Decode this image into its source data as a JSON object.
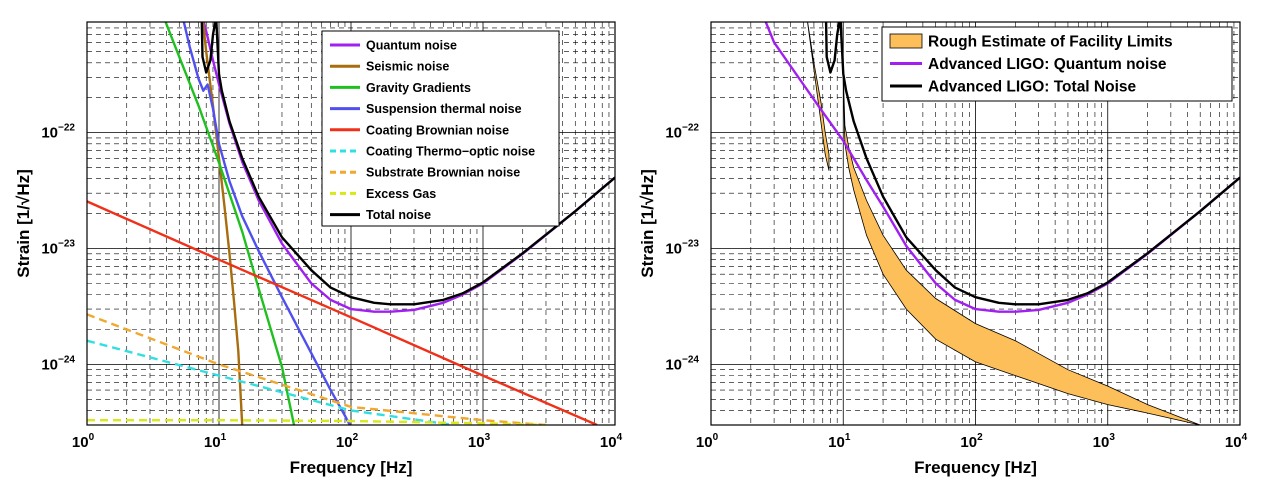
{
  "chart_data": [
    {
      "type": "line",
      "xscale": "log",
      "yscale": "log",
      "xlim": [
        1,
        10000
      ],
      "ylim": [
        3e-25,
        9e-22
      ],
      "xlabel": "Frequency [Hz]",
      "ylabel": "Strain [1/√Hz]",
      "grid": true,
      "legend_position": "top-right",
      "x_ticks": [
        {
          "value": 1,
          "base": "10",
          "exp": "0"
        },
        {
          "value": 10,
          "base": "10",
          "exp": "1"
        },
        {
          "value": 100,
          "base": "10",
          "exp": "2"
        },
        {
          "value": 1000,
          "base": "10",
          "exp": "3"
        },
        {
          "value": 10000,
          "base": "10",
          "exp": "4"
        }
      ],
      "y_ticks": [
        {
          "value": 1e-24,
          "base": "10",
          "exp": "−24"
        },
        {
          "value": 1e-23,
          "base": "10",
          "exp": "−23"
        },
        {
          "value": 1e-22,
          "base": "10",
          "exp": "−22"
        }
      ],
      "series": [
        {
          "name": "Quantum noise",
          "color": "#a020f0",
          "dash": "solid",
          "x": [
            7,
            8,
            9,
            10,
            12,
            15,
            20,
            30,
            50,
            70,
            100,
            150,
            200,
            300,
            500,
            700,
            1000,
            2000,
            5000,
            10000
          ],
          "y": [
            1.3e-21,
            7.5e-22,
            4.2e-22,
            2.6e-22,
            1.2e-22,
            5.6e-23,
            2.6e-23,
            1.1e-23,
            5e-24,
            3.6e-24,
            3e-24,
            2.85e-24,
            2.85e-24,
            2.95e-24,
            3.4e-24,
            4e-24,
            5e-24,
            9e-24,
            2.1e-23,
            4.1e-23
          ]
        },
        {
          "name": "Seismic noise",
          "color": "#a86d0e",
          "dash": "solid",
          "x": [
            7.5,
            8,
            9,
            10,
            11,
            12,
            13,
            14,
            15
          ],
          "y": [
            1e-21,
            5e-22,
            1.7e-22,
            6e-23,
            2.3e-23,
            9e-24,
            3.5e-24,
            1.3e-24,
            3e-25
          ]
        },
        {
          "name": "Gravity Gradients",
          "color": "#20c020",
          "dash": "solid",
          "x": [
            3.8,
            5,
            7,
            10,
            15,
            20,
            30,
            37
          ],
          "y": [
            1e-21,
            4.5e-22,
            1.7e-22,
            5.5e-23,
            1.4e-23,
            4.5e-24,
            9.5e-25,
            3e-25
          ]
        },
        {
          "name": "Suspension thermal noise",
          "color": "#5050f0",
          "dash": "solid",
          "x": [
            5.3,
            6,
            7,
            7.6,
            8.2,
            9,
            10,
            12,
            15,
            20,
            30,
            50,
            70,
            90,
            98
          ],
          "y": [
            1e-21,
            5.5e-22,
            2.9e-22,
            2.3e-22,
            2.6e-22,
            1.6e-22,
            8e-23,
            3.8e-23,
            1.9e-23,
            9.5e-24,
            3.8e-24,
            1.25e-24,
            6e-25,
            3.6e-25,
            3e-25
          ]
        },
        {
          "name": "Coating Brownian noise",
          "color": "#f03018",
          "dash": "solid",
          "x": [
            1,
            10,
            100,
            1000,
            7300
          ],
          "y": [
            2.55e-23,
            8e-24,
            2.55e-24,
            8e-25,
            3e-25
          ]
        },
        {
          "name": "Coating Thermo−optic noise",
          "color": "#30e0e0",
          "dash": "dashed",
          "x": [
            1,
            10,
            100,
            600
          ],
          "y": [
            1.6e-24,
            8e-25,
            4e-25,
            3e-25
          ]
        },
        {
          "name": "Substrate Brownian noise",
          "color": "#f0a830",
          "dash": "dashed",
          "x": [
            1,
            10,
            100,
            1000,
            3000
          ],
          "y": [
            2.7e-24,
            1e-24,
            4.3e-25,
            3.3e-25,
            3e-25
          ]
        },
        {
          "name": "Excess Gas",
          "color": "#d8e818",
          "dash": "dashed",
          "x": [
            1,
            10,
            100,
            1000,
            3000
          ],
          "y": [
            3.3e-25,
            3.3e-25,
            3.25e-25,
            3.1e-25,
            3e-25
          ]
        },
        {
          "name": "Total noise",
          "color": "#000000",
          "dash": "solid",
          "x": [
            7.4,
            7.5,
            8,
            8.6,
            9,
            9.5,
            10,
            10.5,
            12,
            15,
            20,
            30,
            50,
            70,
            100,
            150,
            200,
            300,
            500,
            700,
            1000,
            2000,
            5000,
            10000
          ],
          "y": [
            1e-21,
            4.5e-22,
            3.3e-22,
            4.2e-22,
            7e-22,
            1e-21,
            3.2e-22,
            2.3e-22,
            1.25e-22,
            6e-23,
            2.8e-23,
            1.25e-23,
            6.5e-24,
            4.6e-24,
            3.8e-24,
            3.4e-24,
            3.3e-24,
            3.3e-24,
            3.6e-24,
            4.1e-24,
            5.1e-24,
            9.1e-24,
            2.1e-23,
            4.1e-23
          ]
        }
      ]
    },
    {
      "type": "area",
      "xscale": "log",
      "yscale": "log",
      "xlim": [
        1,
        10000
      ],
      "ylim": [
        3e-25,
        9e-22
      ],
      "xlabel": "Frequency [Hz]",
      "ylabel": "Strain [1/√Hz]",
      "grid": true,
      "legend_position": "top-right",
      "x_ticks": [
        {
          "value": 1,
          "base": "10",
          "exp": "0"
        },
        {
          "value": 10,
          "base": "10",
          "exp": "1"
        },
        {
          "value": 100,
          "base": "10",
          "exp": "2"
        },
        {
          "value": 1000,
          "base": "10",
          "exp": "3"
        },
        {
          "value": 10000,
          "base": "10",
          "exp": "4"
        }
      ],
      "y_ticks": [
        {
          "value": 1e-24,
          "base": "10",
          "exp": "−24"
        },
        {
          "value": 1e-23,
          "base": "10",
          "exp": "−23"
        },
        {
          "value": 1e-22,
          "base": "10",
          "exp": "−22"
        }
      ],
      "bands": [
        {
          "name": "Rough Estimate of Facility Limits",
          "fill": "#fcbf5a",
          "stroke": "#000000",
          "x_upper": [
            5.3,
            6,
            6.8,
            7.3,
            7.8
          ],
          "y_upper": [
            1e-21,
            4e-22,
            1.8e-22,
            1e-22,
            6.5e-23
          ],
          "x_lower": [
            5.3,
            6,
            6.8,
            7.3,
            7.8
          ],
          "y_lower": [
            1e-21,
            3.5e-22,
            1.2e-22,
            6.5e-23,
            4.7e-23
          ]
        },
        {
          "name": "Rough Estimate of Facility Limits",
          "fill": "#fcbf5a",
          "stroke": "#000000",
          "x_upper": [
            9.7,
            10.3,
            11,
            12,
            15,
            20,
            30,
            50,
            100,
            200,
            500,
            1000,
            2000,
            5000
          ],
          "y_upper": [
            1e-21,
            1.15e-22,
            7.5e-23,
            5e-23,
            2.6e-23,
            1.3e-23,
            6.5e-24,
            3.7e-24,
            2.25e-24,
            1.6e-24,
            9e-25,
            6.5e-25,
            4.5e-25,
            3e-25
          ],
          "x_lower": [
            9.7,
            10.3,
            11,
            12,
            15,
            20,
            30,
            50,
            100,
            200,
            500,
            1000,
            2000,
            5000
          ],
          "y_lower": [
            1e-21,
            8e-23,
            5e-23,
            3.2e-23,
            1.3e-23,
            6e-24,
            3e-24,
            1.65e-24,
            1.05e-24,
            8e-25,
            5.6e-25,
            4.5e-25,
            3.8e-25,
            3e-25
          ]
        }
      ],
      "series": [
        {
          "name": "Advanced LIGO: Quantum noise",
          "color": "#a020f0",
          "dash": "solid",
          "x": [
            2.5,
            3,
            5,
            7,
            10,
            15,
            20,
            30,
            50,
            70,
            100,
            150,
            200,
            300,
            500,
            700,
            1000,
            2000,
            5000,
            10000
          ],
          "y": [
            1e-21,
            6e-22,
            2.6e-22,
            1.5e-22,
            8.5e-23,
            3.9e-23,
            2.3e-23,
            1.05e-23,
            5e-24,
            3.6e-24,
            3e-24,
            2.85e-24,
            2.85e-24,
            2.95e-24,
            3.4e-24,
            4e-24,
            5e-24,
            9e-24,
            2.1e-23,
            4.1e-23
          ]
        },
        {
          "name": "Advanced LIGO: Total Noise",
          "color": "#000000",
          "dash": "solid",
          "x": [
            7.4,
            7.5,
            8,
            8.6,
            9,
            9.5,
            10,
            10.5,
            12,
            15,
            20,
            30,
            50,
            70,
            100,
            150,
            200,
            300,
            500,
            700,
            1000,
            2000,
            5000,
            10000
          ],
          "y": [
            1e-21,
            4.5e-22,
            3.3e-22,
            4.2e-22,
            7e-22,
            1e-21,
            3.2e-22,
            2.3e-22,
            1.25e-22,
            6e-23,
            2.8e-23,
            1.25e-23,
            6.5e-24,
            4.6e-24,
            3.8e-24,
            3.4e-24,
            3.3e-24,
            3.3e-24,
            3.6e-24,
            4.1e-24,
            5.1e-24,
            9.1e-24,
            2.1e-23,
            4.1e-23
          ]
        }
      ]
    }
  ]
}
